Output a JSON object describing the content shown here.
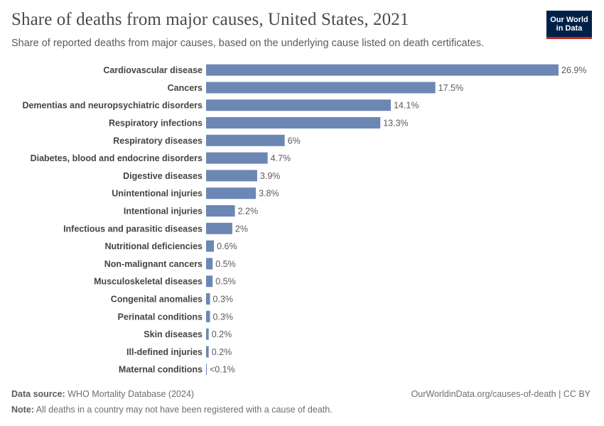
{
  "header": {
    "title": "Share of deaths from major causes, United States, 2021",
    "subtitle": "Share of reported deaths from major causes, based on the underlying cause listed on death certificates."
  },
  "logo": {
    "line1": "Our World",
    "line2": "in Data"
  },
  "footer": {
    "source_label": "Data source:",
    "source_value": "WHO Mortality Database (2024)",
    "note_label": "Note:",
    "note_value": "All deaths in a country may not have been registered with a cause of death.",
    "right": "OurWorldinData.org/causes-of-death | CC BY"
  },
  "colors": {
    "bar": "#6d87b5",
    "logo_bg": "#002147",
    "logo_accent": "#ce261e"
  },
  "chart_data": {
    "type": "bar",
    "orientation": "horizontal",
    "categories": [
      "Cardiovascular disease",
      "Cancers",
      "Dementias and neuropsychiatric disorders",
      "Respiratory infections",
      "Respiratory diseases",
      "Diabetes, blood and endocrine disorders",
      "Digestive diseases",
      "Unintentional injuries",
      "Intentional injuries",
      "Infectious and parasitic diseases",
      "Nutritional deficiencies",
      "Non-malignant cancers",
      "Musculoskeletal diseases",
      "Congenital anomalies",
      "Perinatal conditions",
      "Skin diseases",
      "Ill-defined injuries",
      "Maternal conditions"
    ],
    "values": [
      26.9,
      17.5,
      14.1,
      13.3,
      6,
      4.7,
      3.9,
      3.8,
      2.2,
      2,
      0.6,
      0.5,
      0.5,
      0.3,
      0.3,
      0.2,
      0.2,
      0.05
    ],
    "value_labels": [
      "26.9%",
      "17.5%",
      "14.1%",
      "13.3%",
      "6%",
      "4.7%",
      "3.9%",
      "3.8%",
      "2.2%",
      "2%",
      "0.6%",
      "0.5%",
      "0.5%",
      "0.3%",
      "0.3%",
      "0.2%",
      "0.2%",
      "<0.1%"
    ],
    "unit": "%",
    "title": "Share of deaths from major causes, United States, 2021",
    "xlim": [
      0,
      26.9
    ]
  }
}
